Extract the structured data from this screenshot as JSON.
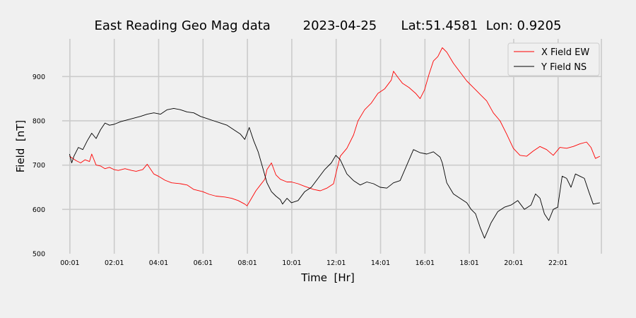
{
  "chart_data": {
    "type": "line",
    "title": "East Reading Geo Mag data        2023-04-25      Lat:51.4581  Lon: 0.9205",
    "xlabel": "Time  [Hr]",
    "ylabel": "Field  [nT]",
    "xlim": [
      -0.33,
      24.0
    ],
    "ylim": [
      500,
      985
    ],
    "x_ticks": [
      0.017,
      2.017,
      4.017,
      6.017,
      8.017,
      10.017,
      12.017,
      14.017,
      16.017,
      18.017,
      20.017,
      22.017,
      23.97
    ],
    "x_tick_labels": [
      "00:01",
      "02:01",
      "04:01",
      "06:01",
      "08:01",
      "10:01",
      "12:01",
      "14:01",
      "16:01",
      "18:01",
      "20:01",
      "22:01",
      ""
    ],
    "y_ticks": [
      500,
      600,
      700,
      800,
      900
    ],
    "y_tick_labels": [
      "500",
      "600",
      "700",
      "800",
      "900"
    ],
    "grid": true,
    "legend_position": "top-right",
    "series": [
      {
        "name": "X Field EW",
        "color": "#ff0000",
        "x": [
          0,
          0.15,
          0.3,
          0.5,
          0.7,
          0.9,
          1.0,
          1.2,
          1.4,
          1.6,
          1.8,
          2.0,
          2.2,
          2.5,
          2.8,
          3.0,
          3.3,
          3.5,
          3.8,
          4.0,
          4.3,
          4.6,
          5.0,
          5.3,
          5.6,
          6.0,
          6.3,
          6.6,
          7.0,
          7.3,
          7.6,
          7.9,
          8.0,
          8.2,
          8.4,
          8.6,
          8.8,
          8.9,
          9.1,
          9.3,
          9.5,
          9.8,
          10.0,
          10.3,
          10.6,
          11.0,
          11.3,
          11.6,
          11.9,
          12.0,
          12.2,
          12.5,
          12.8,
          13.0,
          13.3,
          13.6,
          13.9,
          14.2,
          14.5,
          14.6,
          14.8,
          15.0,
          15.3,
          15.6,
          15.8,
          16.0,
          16.2,
          16.4,
          16.6,
          16.8,
          17.0,
          17.3,
          17.6,
          17.9,
          18.2,
          18.5,
          18.8,
          19.1,
          19.4,
          19.7,
          20.0,
          20.3,
          20.6,
          20.9,
          21.2,
          21.5,
          21.8,
          22.1,
          22.4,
          22.7,
          23.0,
          23.3,
          23.5,
          23.7,
          23.9
        ],
        "values": [
          720,
          715,
          710,
          705,
          712,
          708,
          725,
          700,
          698,
          692,
          695,
          690,
          688,
          692,
          688,
          686,
          690,
          702,
          680,
          675,
          666,
          660,
          658,
          655,
          645,
          640,
          634,
          630,
          628,
          625,
          620,
          612,
          608,
          625,
          642,
          655,
          668,
          690,
          705,
          678,
          668,
          662,
          662,
          658,
          652,
          645,
          642,
          648,
          658,
          680,
          720,
          738,
          768,
          800,
          825,
          840,
          862,
          872,
          892,
          912,
          898,
          885,
          875,
          862,
          850,
          870,
          905,
          935,
          945,
          965,
          955,
          930,
          910,
          890,
          875,
          860,
          845,
          818,
          800,
          770,
          738,
          722,
          720,
          732,
          742,
          735,
          722,
          740,
          738,
          742,
          748,
          752,
          740,
          715,
          720
        ]
      },
      {
        "name": "Y Field NS",
        "color": "#000000",
        "x": [
          0,
          0.1,
          0.2,
          0.4,
          0.6,
          0.8,
          1.0,
          1.2,
          1.4,
          1.6,
          1.8,
          2.0,
          2.3,
          2.6,
          2.9,
          3.2,
          3.5,
          3.8,
          4.1,
          4.4,
          4.7,
          5.0,
          5.3,
          5.6,
          5.9,
          6.2,
          6.5,
          6.8,
          7.1,
          7.4,
          7.7,
          7.9,
          8.1,
          8.3,
          8.5,
          8.7,
          8.9,
          9.1,
          9.3,
          9.5,
          9.6,
          9.8,
          10.0,
          10.3,
          10.6,
          10.9,
          11.2,
          11.5,
          11.8,
          12.0,
          12.2,
          12.5,
          12.8,
          13.1,
          13.4,
          13.7,
          14.0,
          14.3,
          14.6,
          14.9,
          15.2,
          15.5,
          15.8,
          16.1,
          16.4,
          16.7,
          16.8,
          17.0,
          17.3,
          17.6,
          17.9,
          18.1,
          18.3,
          18.5,
          18.7,
          19.0,
          19.3,
          19.6,
          19.9,
          20.2,
          20.5,
          20.8,
          21.0,
          21.2,
          21.4,
          21.6,
          21.8,
          22.0,
          22.2,
          22.4,
          22.6,
          22.8,
          23.0,
          23.2,
          23.4,
          23.6,
          23.9
        ],
        "values": [
          725,
          705,
          720,
          740,
          735,
          755,
          772,
          760,
          780,
          795,
          790,
          792,
          798,
          802,
          806,
          810,
          815,
          818,
          815,
          825,
          828,
          825,
          820,
          818,
          810,
          805,
          800,
          795,
          790,
          780,
          770,
          758,
          785,
          755,
          730,
          695,
          660,
          640,
          630,
          622,
          612,
          625,
          615,
          620,
          640,
          650,
          670,
          690,
          705,
          722,
          712,
          680,
          665,
          655,
          662,
          658,
          650,
          648,
          660,
          665,
          700,
          735,
          728,
          725,
          730,
          718,
          705,
          660,
          635,
          625,
          615,
          600,
          590,
          560,
          535,
          570,
          595,
          605,
          610,
          620,
          600,
          610,
          635,
          625,
          590,
          575,
          600,
          605,
          675,
          670,
          650,
          680,
          675,
          670,
          640,
          612,
          615
        ]
      }
    ]
  }
}
